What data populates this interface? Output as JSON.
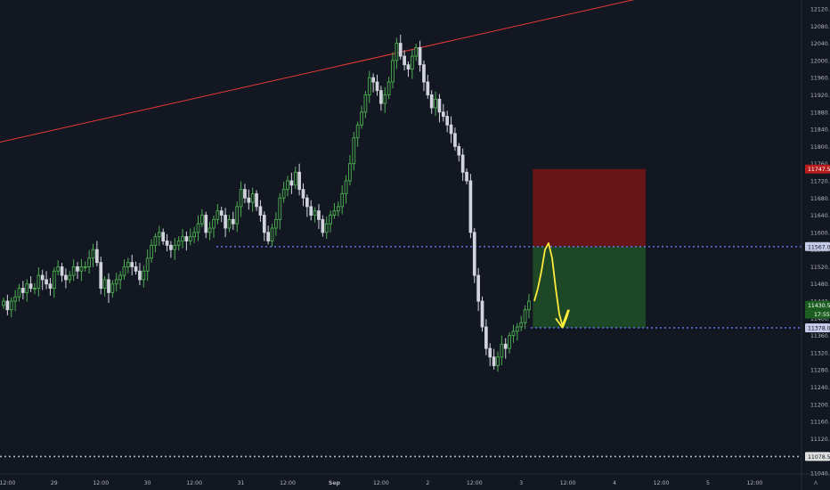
{
  "chart_data": {
    "type": "candlestick",
    "title": "",
    "ylim": [
      11020,
      12140
    ],
    "y_ticks": [
      12120,
      12080,
      12040,
      12000,
      11960,
      11920,
      11880,
      11840,
      11800,
      11760,
      11720,
      11680,
      11640,
      11600,
      11560,
      11520,
      11480,
      11440,
      11400,
      11360,
      11320,
      11280,
      11240,
      11200,
      11160,
      11120,
      11080,
      11040
    ],
    "y_tick_labels": [
      "12120.0",
      "12080.0",
      "12040.0",
      "12000.0",
      "11960.0",
      "11920.0",
      "11880.0",
      "11840.0",
      "11800.0",
      "11760.0",
      "11720.0",
      "11680.0",
      "11640.0",
      "11600.0",
      "11560.0",
      "11520.0",
      "11480.0",
      "11440.0",
      "11400.0",
      "11360.0",
      "11320.0",
      "11280.0",
      "11240.0",
      "11200.0",
      "11160.0",
      "11120.0",
      "11080.0",
      "11040.0"
    ],
    "x_ticks": [
      {
        "label": "12:00",
        "slot": 1
      },
      {
        "label": "29",
        "slot": 13
      },
      {
        "label": "12:00",
        "slot": 25
      },
      {
        "label": "30",
        "slot": 37
      },
      {
        "label": "12:00",
        "slot": 49
      },
      {
        "label": "31",
        "slot": 61
      },
      {
        "label": "12:00",
        "slot": 73
      },
      {
        "label": "Sep",
        "slot": 85,
        "bold": true
      },
      {
        "label": "12:00",
        "slot": 97
      },
      {
        "label": "2",
        "slot": 109
      },
      {
        "label": "12:00",
        "slot": 121
      },
      {
        "label": "3",
        "slot": 133
      },
      {
        "label": "12:00",
        "slot": 145
      },
      {
        "label": "4",
        "slot": 157
      },
      {
        "label": "12:00",
        "slot": 169
      },
      {
        "label": "5",
        "slot": 181
      },
      {
        "label": "12:00",
        "slot": 193
      }
    ],
    "x_slots": 206,
    "candles_close": [
      11440,
      11420,
      11440,
      11450,
      11470,
      11460,
      11480,
      11470,
      11470,
      11500,
      11490,
      11480,
      11470,
      11510,
      11520,
      11500,
      11490,
      11500,
      11520,
      11510,
      11520,
      11520,
      11540,
      11560,
      11530,
      11470,
      11490,
      11460,
      11480,
      11490,
      11500,
      11520,
      11530,
      11520,
      11510,
      11490,
      11510,
      11540,
      11570,
      11590,
      11600,
      11580,
      11570,
      11560,
      11570,
      11580,
      11590,
      11580,
      11590,
      11600,
      11620,
      11640,
      11600,
      11610,
      11630,
      11650,
      11640,
      11610,
      11630,
      11620,
      11660,
      11700,
      11680,
      11670,
      11690,
      11660,
      11640,
      11600,
      11580,
      11610,
      11630,
      11680,
      11700,
      11720,
      11710,
      11740,
      11700,
      11680,
      11660,
      11640,
      11650,
      11630,
      11600,
      11620,
      11640,
      11650,
      11660,
      11690,
      11720,
      11760,
      11820,
      11850,
      11880,
      11920,
      11960,
      11950,
      11930,
      11900,
      11920,
      11950,
      12000,
      12040,
      12010,
      11990,
      11980,
      12010,
      12030,
      11990,
      11950,
      11920,
      11890,
      11910,
      11880,
      11870,
      11850,
      11830,
      11800,
      11780,
      11740,
      11720,
      11600,
      11500,
      11440,
      11380,
      11330,
      11310,
      11290,
      11310,
      11340,
      11330,
      11360,
      11370,
      11380,
      11390,
      11420,
      11440
    ],
    "levels": [
      {
        "price": 11747.5,
        "label": "11747.5",
        "color": "#d32f2f",
        "style": "none"
      },
      {
        "price": 11567.0,
        "label": "11567.0",
        "color": "#5a6fd6",
        "style": "dotted"
      },
      {
        "price": 11430.5,
        "label": "11430.5",
        "color": "#2e7d32",
        "style": "none"
      },
      {
        "price": 11378.0,
        "label": "11378.0",
        "color": "#5a6fd6",
        "style": "dotted"
      },
      {
        "price": 11078.5,
        "label": "11078.5",
        "color": "#b2b5be",
        "style": "dotted"
      }
    ],
    "price_badges": [
      {
        "price": 11747.5,
        "label": "11747.5",
        "bg": "#b71c1c",
        "fg": "#ffffff"
      },
      {
        "price": 11567.0,
        "label": "11567.0",
        "bg": "#c5cae9",
        "fg": "#131722"
      },
      {
        "price": 11430.5,
        "label": "11430.5",
        "bg": "#1b5e20",
        "fg": "#ffffff"
      },
      {
        "price": 11378.0,
        "label": "11378.0",
        "bg": "#c5cae9",
        "fg": "#131722"
      },
      {
        "price": 11078.5,
        "label": "11078.5",
        "bg": "#e0e0e0",
        "fg": "#131722"
      }
    ],
    "countdown": "17:55",
    "trendline": {
      "from_price": 11810,
      "to_price": 12150,
      "color": "#e53935"
    },
    "position": {
      "entry": 11567.0,
      "stop": 11747.5,
      "target": 11378.0,
      "risk_color": "#6b1516",
      "reward_color": "#1d4a26"
    },
    "up_color": "#4caf50",
    "down_color": "#d1d4dc",
    "grid": false
  },
  "axis_letter": "A"
}
